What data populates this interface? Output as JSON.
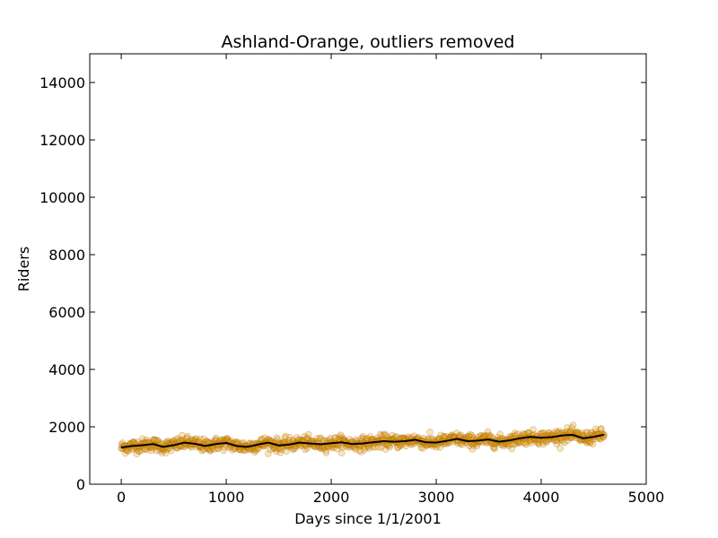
{
  "chart_data": {
    "type": "scatter",
    "title": "Ashland-Orange, outliers removed",
    "xlabel": "Days since 1/1/2001",
    "ylabel": "Riders",
    "xlim": [
      -300,
      5000
    ],
    "ylim": [
      0,
      15000
    ],
    "xticks": [
      0,
      1000,
      2000,
      3000,
      4000,
      5000
    ],
    "yticks": [
      0,
      2000,
      4000,
      6000,
      8000,
      10000,
      12000,
      14000
    ],
    "grid": false,
    "x_range": [
      0,
      4600
    ],
    "points_color": "#e8a317",
    "points_edge_color": "#a06000",
    "trend_color": "#000000",
    "trend": {
      "name": "",
      "x": [
        0,
        100,
        200,
        300,
        400,
        500,
        600,
        700,
        800,
        900,
        1000,
        1100,
        1200,
        1300,
        1400,
        1500,
        1600,
        1700,
        1800,
        1900,
        2000,
        2100,
        2200,
        2300,
        2400,
        2500,
        2600,
        2700,
        2800,
        2900,
        3000,
        3100,
        3200,
        3300,
        3400,
        3500,
        3600,
        3700,
        3800,
        3900,
        4000,
        4100,
        4200,
        4300,
        4400,
        4500,
        4600
      ],
      "y": [
        1280,
        1330,
        1360,
        1400,
        1300,
        1360,
        1450,
        1410,
        1330,
        1400,
        1440,
        1330,
        1300,
        1380,
        1450,
        1350,
        1380,
        1450,
        1420,
        1390,
        1430,
        1460,
        1400,
        1420,
        1460,
        1500,
        1480,
        1500,
        1550,
        1460,
        1450,
        1510,
        1580,
        1500,
        1520,
        1560,
        1480,
        1530,
        1600,
        1650,
        1620,
        1640,
        1700,
        1720,
        1600,
        1650,
        1730
      ]
    }
  }
}
